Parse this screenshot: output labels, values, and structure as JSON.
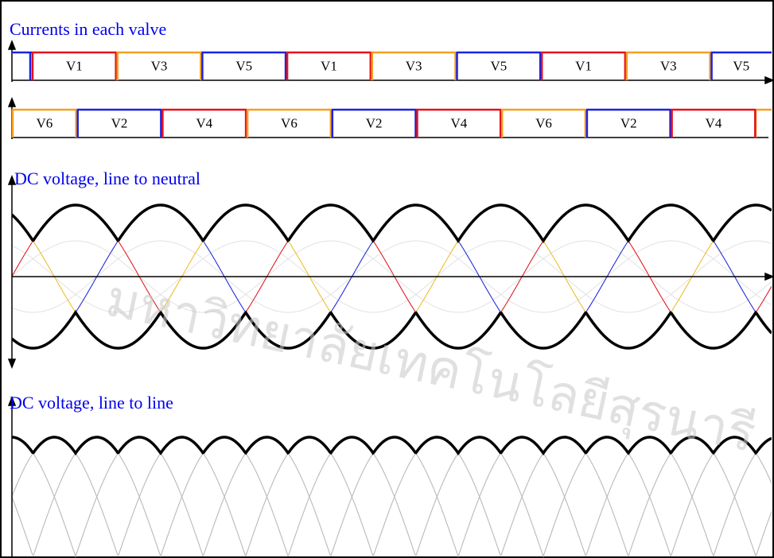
{
  "titles": {
    "currents": "Currents in each valve",
    "neutral": "DC voltage, line to neutral",
    "line": "DC voltage, line to line"
  },
  "upper_valves": [
    {
      "label": "V1",
      "color": "#e8101a"
    },
    {
      "label": "V3",
      "color": "#f5a020"
    },
    {
      "label": "V5",
      "color": "#1a22e0"
    },
    {
      "label": "V1",
      "color": "#e8101a"
    },
    {
      "label": "V3",
      "color": "#f5a020"
    },
    {
      "label": "V5",
      "color": "#1a22e0"
    },
    {
      "label": "V1",
      "color": "#e8101a"
    },
    {
      "label": "V3",
      "color": "#f5a020"
    },
    {
      "label": "V5",
      "color": "#1a22e0"
    }
  ],
  "lower_valves": [
    {
      "label": "V6",
      "color": "#f5a020"
    },
    {
      "label": "V2",
      "color": "#1a22e0"
    },
    {
      "label": "V4",
      "color": "#e8101a"
    },
    {
      "label": "V6",
      "color": "#f5a020"
    },
    {
      "label": "V2",
      "color": "#1a22e0"
    },
    {
      "label": "V4",
      "color": "#e8101a"
    },
    {
      "label": "V6",
      "color": "#f5a020"
    },
    {
      "label": "V2",
      "color": "#1a22e0"
    },
    {
      "label": "V4",
      "color": "#e8101a"
    }
  ],
  "watermark": "มหาวิทยาลัยเทคโนโลยีสุรนารี"
}
